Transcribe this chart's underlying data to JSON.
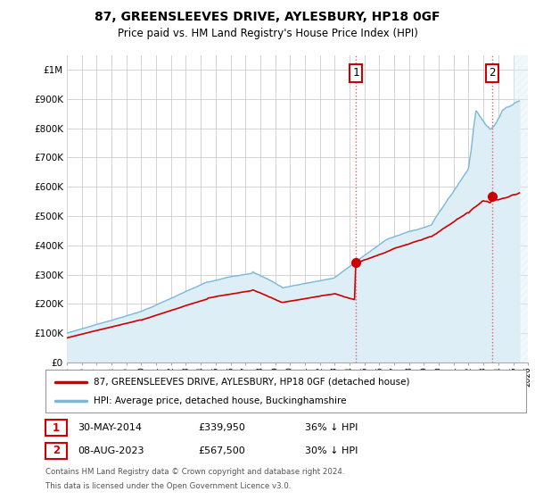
{
  "title": "87, GREENSLEEVES DRIVE, AYLESBURY, HP18 0GF",
  "subtitle": "Price paid vs. HM Land Registry's House Price Index (HPI)",
  "legend_line1": "87, GREENSLEEVES DRIVE, AYLESBURY, HP18 0GF (detached house)",
  "legend_line2": "HPI: Average price, detached house, Buckinghamshire",
  "annotation1_label": "1",
  "annotation1_date": "30-MAY-2014",
  "annotation1_price": "£339,950",
  "annotation1_hpi": "36% ↓ HPI",
  "annotation2_label": "2",
  "annotation2_date": "08-AUG-2023",
  "annotation2_price": "£567,500",
  "annotation2_hpi": "30% ↓ HPI",
  "footer1": "Contains HM Land Registry data © Crown copyright and database right 2024.",
  "footer2": "This data is licensed under the Open Government Licence v3.0.",
  "hpi_color": "#7ab8d9",
  "hpi_fill_color": "#ddeef7",
  "price_color": "#cc0000",
  "annotation_color": "#cc0000",
  "dashed_color": "#e06060",
  "background_color": "#ffffff",
  "grid_color": "#cccccc",
  "ylim": [
    0,
    1050000
  ],
  "yticks": [
    0,
    100000,
    200000,
    300000,
    400000,
    500000,
    600000,
    700000,
    800000,
    900000,
    1000000
  ],
  "sale1_x": 2014.42,
  "sale1_y": 339950,
  "sale2_x": 2023.58,
  "sale2_y": 567500,
  "vline1_x": 2014.42,
  "vline2_x": 2023.58,
  "xmin": 1995.0,
  "xmax": 2026.0,
  "hatch_start": 2025.0
}
